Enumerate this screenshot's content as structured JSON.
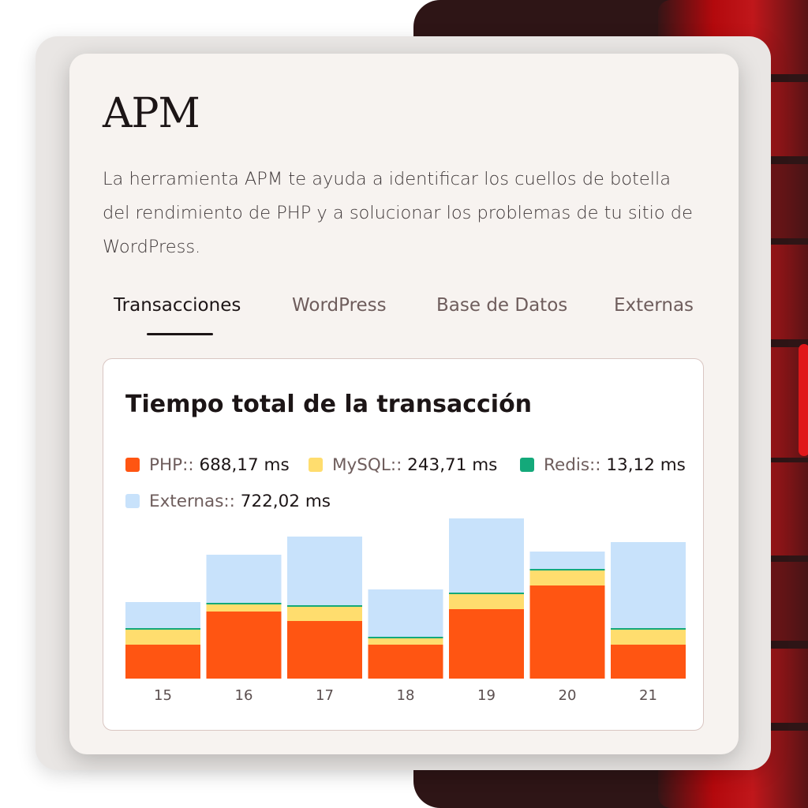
{
  "app": {
    "title": "APM",
    "description": "La herramienta APM te ayuda a identificar los cuellos de botella del rendimiento de PHP y a solucionar los problemas de tu sitio de WordPress."
  },
  "tabs": [
    {
      "label": "Transacciones",
      "active": true
    },
    {
      "label": "WordPress",
      "active": false
    },
    {
      "label": "Base de Datos",
      "active": false
    },
    {
      "label": "Externas",
      "active": false
    }
  ],
  "colors": {
    "php": "#ff5512",
    "mysql": "#ffdd6e",
    "redis": "#14a97a",
    "externas": "#c8e2fb",
    "active_tab": "#1c1516",
    "backdrop": "#2e1516",
    "accent_red": "#c0171b"
  },
  "chart_data": {
    "type": "bar",
    "stacked": true,
    "title": "Tiempo total de la transacción",
    "legend": [
      {
        "label": "PHP::",
        "value": "688,17 ms",
        "color": "#ff5512"
      },
      {
        "label": "MySQL::",
        "value": "243,71 ms",
        "color": "#ffdd6e"
      },
      {
        "label": "Redis::",
        "value": "13,12 ms",
        "color": "#14a97a"
      },
      {
        "label": "Externas::",
        "value": "722,02 ms",
        "color": "#c8e2fb"
      }
    ],
    "categories": [
      "15",
      "16",
      "17",
      "18",
      "19",
      "20",
      "21"
    ],
    "series": [
      {
        "name": "PHP",
        "color": "#ff5512",
        "values": [
          43,
          85,
          73,
          43,
          88,
          118,
          43
        ]
      },
      {
        "name": "MySQL",
        "color": "#ffdd6e",
        "values": [
          19,
          9,
          18,
          8,
          19,
          19,
          19
        ]
      },
      {
        "name": "Redis",
        "color": "#14a97a",
        "values": [
          2,
          2,
          2,
          2,
          2,
          2,
          2
        ]
      },
      {
        "name": "Externas",
        "color": "#c8e2fb",
        "values": [
          33,
          61,
          87,
          60,
          94,
          22,
          109
        ]
      }
    ],
    "ylim": [
      0,
      205
    ],
    "grid": false,
    "legend_position": "top"
  }
}
